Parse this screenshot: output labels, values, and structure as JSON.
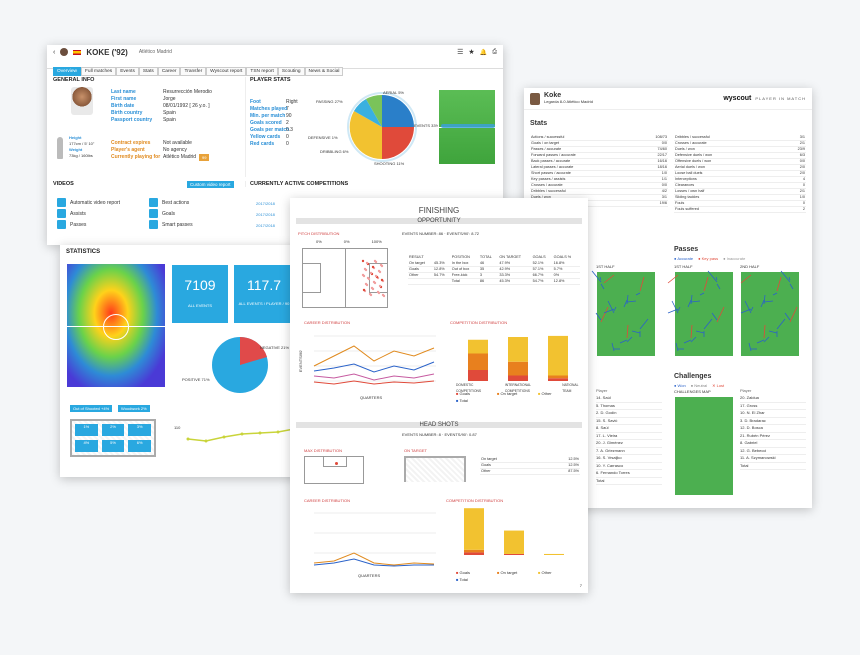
{
  "profile": {
    "player_name": "KOKE ('92)",
    "club": "Atlético Madrid",
    "tabs": [
      "Overview",
      "Full matches",
      "Events",
      "Stats",
      "Career",
      "Transfer",
      "Wyscout report",
      "TSN report",
      "Scouting",
      "News & Social"
    ],
    "general_info_title": "GENERAL INFO",
    "info_labels": [
      "Last name",
      "First name",
      "Birth date",
      "Birth country",
      "Passport country"
    ],
    "info_values": [
      "Resurrección Merodio",
      "Jorge",
      "08/01/1992 [ 26 y.o. ]",
      "Spain",
      "Spain"
    ],
    "height_label": "Height",
    "height_value": "177cm / 5' 10\"",
    "weight_label": "Weight",
    "weight_value": "73kg / 160lbs",
    "contract_labels": [
      "Contract expires",
      "Player's agent",
      "Currently playing for"
    ],
    "contract_values": [
      "Not available",
      "No agency",
      "Atlético Madrid"
    ],
    "contract_badge": "99",
    "player_stats_title": "PLAYER STATS",
    "stat_labels": [
      "Foot",
      "Matches played",
      "Min. per match",
      "Goals scored",
      "Goals per match",
      "Yellow cards",
      "Red cards"
    ],
    "stat_values": [
      "Right",
      "7",
      "90",
      "2",
      "0.3",
      "0",
      "0"
    ],
    "pie_labels": [
      "PASSING 27%",
      "AERIAL 5%",
      "EVENTS 33%",
      "DEFENSIVE 1%",
      "DRIBBLING 6%",
      "SHOOTING 11%"
    ],
    "videos_title": "VIDEOS",
    "custom_video_btn": "Custom video report",
    "video_items": [
      "Automatic video report",
      "Best actions",
      "Assists",
      "Goals",
      "Passes",
      "Smart passes"
    ],
    "competitions_title": "CURRENTLY ACTIVE COMPETITIONS",
    "competitions": [
      "2017/2018",
      "2017/2018",
      "2017/2018"
    ]
  },
  "statistics": {
    "title": "STATISTICS",
    "all_events_value": "7109",
    "all_events_label": "ALL EVENTS",
    "per90_value": "117.7",
    "per90_label": "ALL EVENTS / PLAYER / 90",
    "pie_neg": "NEGATIVE 21%",
    "pie_pos": "POSITIVE 71%",
    "btn_out": "Out of Shooted +4%",
    "btn_woodwork": "Woodwork 2%",
    "goal_zones": [
      "1%",
      "2%",
      "3%",
      "4%",
      "5%",
      "6%"
    ],
    "line_y_label": "110"
  },
  "finishing": {
    "title": "FINISHING",
    "opportunity_bar": "OPPORTUNITY",
    "subtitle": "EVENTS NUMBER: 86 · EVENTS/90': 8.72",
    "pitch_dist": "PITCH DISTRIBUTION",
    "pct_row": [
      "0%",
      "0%",
      "100%"
    ],
    "table_head": [
      "RESULT",
      "POSITION",
      "TOTAL",
      "ON TARGET",
      "GOALS",
      "GOALS %"
    ],
    "table_rows": [
      [
        "On target",
        "45.3%",
        "In the box",
        "46",
        "47.9%",
        "52.1%",
        "16.8%"
      ],
      [
        "Goals",
        "12.8%",
        "Out of box",
        "35",
        "42.9%",
        "57.1%",
        "5.7%"
      ],
      [
        "Other",
        "54.7%",
        "Free-kick",
        "3",
        "33.3%",
        "66.7%",
        "0%"
      ],
      [
        "",
        "",
        "Total",
        "86",
        "45.3%",
        "54.7%",
        "12.8%"
      ]
    ],
    "career_dist": "CAREER DISTRIBUTION",
    "comp_dist": "COMPETITION DISTRIBUTION",
    "x_axis": "QUARTERS",
    "y_axis": "EVENTS/90'",
    "comp_legend": [
      "Goals",
      "On target",
      "Other",
      "Total"
    ],
    "comp_cats": [
      "DOMESTIC COMPETITIONS",
      "INTERNATIONAL COMPETITIONS",
      "NATIONAL TEAM"
    ],
    "head_bar": "HEAD SHOTS",
    "head_subtitle": "EVENTS NUMBER: 8 · EVENTS/90': 0.87",
    "head_pitch": "MAX DISTRIBUTION",
    "on_target": "ON TARGET",
    "head_table": [
      [
        "On target",
        "12.5%"
      ],
      [
        "Goals",
        "12.5%"
      ],
      [
        "Other",
        "87.5%"
      ]
    ],
    "page_num": "7"
  },
  "report": {
    "name": "Koke",
    "sub": "Legarda 8-0 Atlético Madrid",
    "brand": "wyscout",
    "brand_tag": "PLAYER IN MATCH",
    "stats_title": "Stats",
    "stats_left": [
      [
        "Actions / successful",
        "108/73"
      ],
      [
        "Goals / on target",
        "0/0"
      ],
      [
        "Passes / accurate",
        "74/60"
      ],
      [
        "Forward passes / accurate",
        "22/17"
      ],
      [
        "Back passes / accurate",
        "16/16"
      ],
      [
        "Lateral passes / accurate",
        "18/16"
      ],
      [
        "Short passes / accurate",
        "1/0"
      ],
      [
        "Key passes / assists",
        "1/1"
      ],
      [
        "Crosses / accurate",
        "0/0"
      ],
      [
        "Dribbles / successful",
        "4/2"
      ],
      [
        "Duels / won",
        "3/1"
      ],
      [
        "Shots / on target",
        "19/6"
      ]
    ],
    "stats_right": [
      [
        "Dribbles / successful",
        "3/1"
      ],
      [
        "Crosses / accurate",
        "2/1"
      ],
      [
        "Duels / won",
        "23/9"
      ],
      [
        "Defensive duels / won",
        "6/3"
      ],
      [
        "Offensive duels / won",
        "0/0"
      ],
      [
        "Aerial duels / won",
        "2/0"
      ],
      [
        "Loose ball duels",
        "2/0"
      ],
      [
        "Interceptions",
        "4"
      ],
      [
        "Clearances",
        "0"
      ],
      [
        "Losses / own half",
        "2/1"
      ],
      [
        "Sliding tackles",
        "1/0"
      ],
      [
        "Fouls",
        "0"
      ],
      [
        "Fouls suffered",
        "2"
      ]
    ],
    "passes_title": "Passes",
    "passes_legend": [
      "Accurate",
      "Key pass",
      "Inaccurate"
    ],
    "first_half": "1ST HALF",
    "second_half": "2ND HALF",
    "challenges_title": "Challenges",
    "challenges_legend": [
      "Won",
      "Neutral",
      "Lost"
    ],
    "challenges_map": "CHALLENGES MAP",
    "player_col": "Player",
    "left_list": [
      "14. Saúl",
      "5. Thomas",
      "2. D. Godín",
      "15. S. Savić",
      "8. Saúl",
      "17. L. Vieira",
      "20. J. Giménez",
      "7. A. Griezmann",
      "16. S. Vrsaljko",
      "10. Y. Carrasco",
      "6. Fernando Torres",
      "Total"
    ],
    "right_list": [
      "20. Zaldua",
      "17. Gross",
      "10. N. El Zhar",
      "3. D. Bradarac",
      "12. D. Bosca",
      "21. Rubén Pérez",
      "8. Gabriel",
      "12. G. Bebecci",
      "11. A. Szymanowski",
      "Total"
    ]
  }
}
